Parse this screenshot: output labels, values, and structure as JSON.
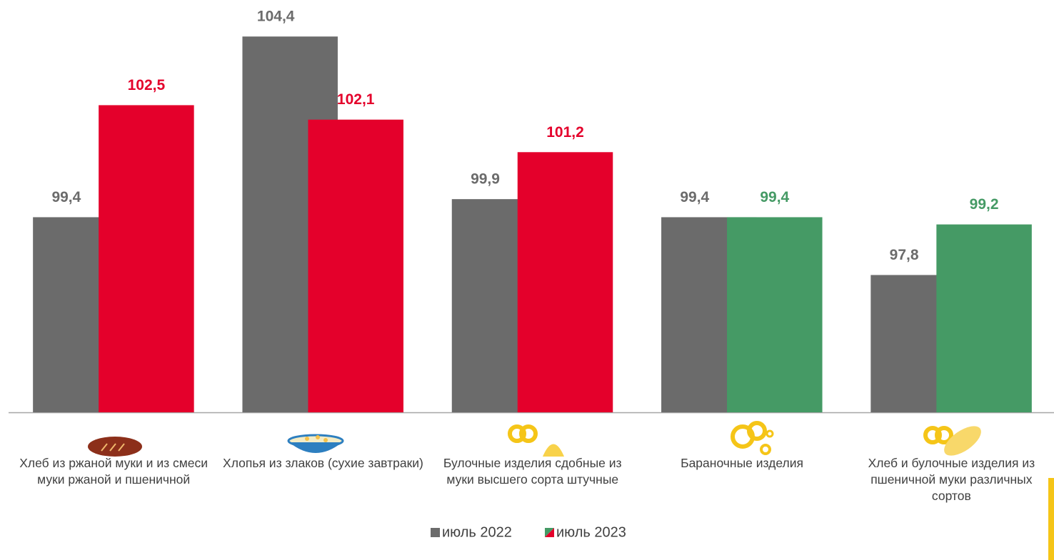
{
  "chart_data": {
    "type": "bar",
    "categories": [
      "Хлеб из ржаной муки и из смеси муки ржаной и пшеничной",
      "Хлопья из злаков (сухие завтраки)",
      "Булочные изделия сдобные из муки высшего сорта штучные",
      "Бараночные изделия",
      "Хлеб и булочные изделия из пшеничной муки различных сортов"
    ],
    "series": [
      {
        "name": "июль 2022",
        "color": "#6b6b6b",
        "values": [
          99.4,
          104.4,
          99.9,
          99.4,
          97.8
        ],
        "value_labels": [
          "99,4",
          "104,4",
          "99,9",
          "99,4",
          "97,8"
        ]
      },
      {
        "name": "июль 2023",
        "colors": [
          "#e4002b",
          "#e4002b",
          "#e4002b",
          "#459a65",
          "#459a65"
        ],
        "values": [
          102.5,
          102.1,
          101.2,
          99.4,
          99.2
        ],
        "value_labels": [
          "102,5",
          "102,1",
          "101,2",
          "99,4",
          "99,2"
        ]
      }
    ],
    "ylim": [
      94,
      105
    ]
  }
}
